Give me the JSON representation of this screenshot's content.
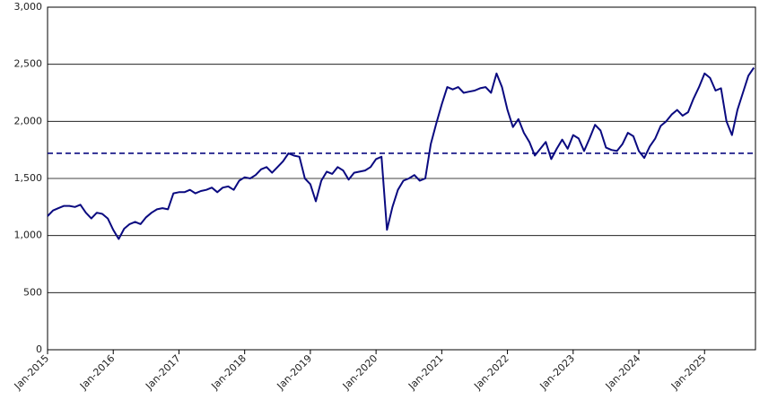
{
  "chart_data": {
    "type": "line",
    "color": "#0a0a80",
    "grid": true,
    "categories": [
      "Jan-2015",
      null,
      null,
      null,
      null,
      null,
      null,
      null,
      null,
      null,
      null,
      null,
      "Jan-2016",
      null,
      null,
      null,
      null,
      null,
      null,
      null,
      null,
      null,
      null,
      null,
      "Jan-2017",
      null,
      null,
      null,
      null,
      null,
      null,
      null,
      null,
      null,
      null,
      null,
      "Jan-2018",
      null,
      null,
      null,
      null,
      null,
      null,
      null,
      null,
      null,
      null,
      null,
      "Jan-2019",
      null,
      null,
      null,
      null,
      null,
      null,
      null,
      null,
      null,
      null,
      null,
      "Jan-2020",
      null,
      null,
      null,
      null,
      null,
      null,
      null,
      null,
      null,
      null,
      null,
      "Jan-2021",
      null,
      null,
      null,
      null,
      null,
      null,
      null,
      null,
      null,
      null,
      null,
      "Jan-2022",
      null,
      null,
      null,
      null,
      null,
      null,
      null,
      null,
      null,
      null,
      null,
      "Jan-2023",
      null,
      null,
      null,
      null,
      null,
      null,
      null,
      null,
      null,
      null,
      null,
      "Jan-2024",
      null,
      null,
      null,
      null,
      null,
      null,
      null,
      null,
      null,
      null,
      null,
      "Jan-2025",
      null,
      null,
      null,
      null,
      null,
      null,
      null,
      null,
      null
    ],
    "values": [
      1170,
      1220,
      1240,
      1260,
      1260,
      1250,
      1270,
      1200,
      1150,
      1200,
      1190,
      1150,
      1050,
      970,
      1060,
      1100,
      1120,
      1100,
      1160,
      1200,
      1230,
      1240,
      1230,
      1370,
      1380,
      1380,
      1400,
      1370,
      1390,
      1400,
      1420,
      1380,
      1420,
      1430,
      1400,
      1480,
      1510,
      1500,
      1530,
      1580,
      1600,
      1550,
      1600,
      1650,
      1720,
      1700,
      1690,
      1500,
      1450,
      1300,
      1480,
      1560,
      1540,
      1600,
      1570,
      1490,
      1550,
      1560,
      1570,
      1600,
      1670,
      1690,
      1050,
      1250,
      1400,
      1480,
      1500,
      1530,
      1480,
      1500,
      1800,
      1980,
      2150,
      2300,
      2280,
      2300,
      2250,
      2260,
      2270,
      2290,
      2300,
      2250,
      2420,
      2300,
      2100,
      1950,
      2020,
      1900,
      1820,
      1700,
      1760,
      1820,
      1670,
      1760,
      1840,
      1760,
      1880,
      1850,
      1740,
      1850,
      1970,
      1920,
      1770,
      1750,
      1740,
      1800,
      1900,
      1870,
      1740,
      1680,
      1780,
      1850,
      1960,
      2000,
      2060,
      2100,
      2050,
      2080,
      2200,
      2300,
      2420,
      2380,
      2270,
      2290,
      2000,
      1880,
      2100,
      2250,
      2400,
      2470
    ],
    "hline": 1720,
    "ylim": [
      0,
      3000
    ],
    "yticks": [
      0,
      500,
      {
        "value": 1000,
        "label": "1,000"
      },
      {
        "value": 1500,
        "label": "1,500"
      },
      {
        "value": 2000,
        "label": "2,000"
      },
      {
        "value": 2500,
        "label": "2,500"
      },
      {
        "value": 3000,
        "label": "3,000"
      }
    ]
  }
}
